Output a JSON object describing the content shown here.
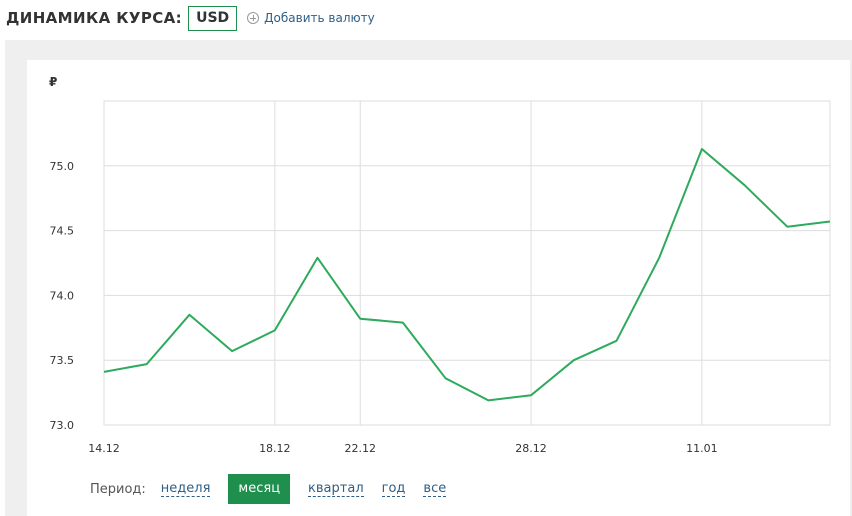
{
  "header": {
    "title": "ДИНАМИКА КУРСА:",
    "currency": "USD",
    "add_currency_label": "Добавить валюту",
    "add_icon": "plus-circle-icon"
  },
  "period": {
    "label": "Период:",
    "options": [
      "неделя",
      "месяц",
      "квартал",
      "год",
      "все"
    ],
    "active": "месяц"
  },
  "colors": {
    "line": "#2eaa5c",
    "accent": "#1f8f4e",
    "link": "#2f5f86",
    "grid": "#dddddd"
  },
  "chart_data": {
    "type": "line",
    "y_unit_label": "₽",
    "ylim": [
      73.0,
      75.5
    ],
    "yticks": [
      73.0,
      73.5,
      74.0,
      74.5,
      75.0
    ],
    "ytick_labels": [
      "73.0",
      "73.5",
      "74.0",
      "74.5",
      "75.0"
    ],
    "x_tick_labels": [
      "14.12",
      "18.12",
      "22.12",
      "28.12",
      "11.01"
    ],
    "x_tick_index": [
      0,
      4,
      6,
      10,
      14
    ],
    "grid": true,
    "legend": "none",
    "series": [
      {
        "values": [
          73.41,
          73.47,
          73.85,
          73.57,
          73.73,
          74.29,
          73.82,
          73.79,
          73.36,
          73.19,
          73.23,
          73.5,
          73.65,
          74.29,
          75.13,
          74.85,
          74.53,
          74.57
        ]
      }
    ]
  }
}
